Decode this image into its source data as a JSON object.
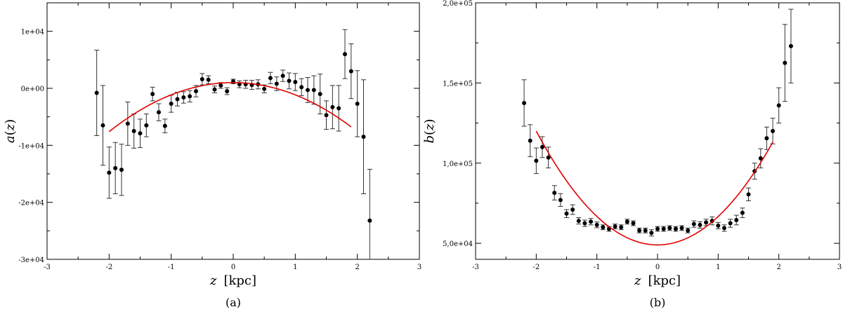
{
  "chart_data": [
    {
      "type": "scatter",
      "panel_label": "(a)",
      "xlabel_var": "z",
      "xlabel_unit": "[kpc]",
      "ylabel_var": "a",
      "ylabel_arg": "z",
      "xlim": [
        -3,
        3
      ],
      "ylim": [
        -30000,
        15000
      ],
      "x_ticks": [
        -3,
        -2,
        -1,
        0,
        1,
        2,
        3
      ],
      "x_tick_labels": [
        "-3",
        "-2",
        "-1",
        "0",
        "1",
        "2",
        "3"
      ],
      "y_ticks": [
        -30000,
        -20000,
        -10000,
        0,
        10000
      ],
      "y_tick_labels": [
        "-3e+04",
        "-2e+04",
        "-1e+04",
        "0e+00",
        "1e+04"
      ],
      "series": [
        {
          "kind": "points_with_error_bars",
          "color": "#000000",
          "points": [
            {
              "x": -2.2,
              "y": -800,
              "err": 7500
            },
            {
              "x": -2.1,
              "y": -6500,
              "err": 7000
            },
            {
              "x": -2.0,
              "y": -14800,
              "err": 4500
            },
            {
              "x": -1.9,
              "y": -14000,
              "err": 4500
            },
            {
              "x": -1.8,
              "y": -14300,
              "err": 4500
            },
            {
              "x": -1.7,
              "y": -6200,
              "err": 3800
            },
            {
              "x": -1.6,
              "y": -7500,
              "err": 3000
            },
            {
              "x": -1.5,
              "y": -7900,
              "err": 2500
            },
            {
              "x": -1.4,
              "y": -6500,
              "err": 2000
            },
            {
              "x": -1.3,
              "y": -1000,
              "err": 1200
            },
            {
              "x": -1.2,
              "y": -4200,
              "err": 1500
            },
            {
              "x": -1.1,
              "y": -6600,
              "err": 1200
            },
            {
              "x": -1.0,
              "y": -2700,
              "err": 1500
            },
            {
              "x": -0.9,
              "y": -1900,
              "err": 1200
            },
            {
              "x": -0.8,
              "y": -1600,
              "err": 1000
            },
            {
              "x": -0.7,
              "y": -1400,
              "err": 1000
            },
            {
              "x": -0.6,
              "y": -500,
              "err": 1000
            },
            {
              "x": -0.5,
              "y": 1600,
              "err": 1000
            },
            {
              "x": -0.4,
              "y": 1500,
              "err": 700
            },
            {
              "x": -0.3,
              "y": -200,
              "err": 600
            },
            {
              "x": -0.2,
              "y": 500,
              "err": 500
            },
            {
              "x": -0.1,
              "y": -500,
              "err": 600
            },
            {
              "x": 0.0,
              "y": 1200,
              "err": 400
            },
            {
              "x": 0.1,
              "y": 700,
              "err": 600
            },
            {
              "x": 0.2,
              "y": 700,
              "err": 700
            },
            {
              "x": 0.3,
              "y": 600,
              "err": 800
            },
            {
              "x": 0.4,
              "y": 700,
              "err": 800
            },
            {
              "x": 0.5,
              "y": -100,
              "err": 700
            },
            {
              "x": 0.6,
              "y": 1800,
              "err": 1000
            },
            {
              "x": 0.7,
              "y": 800,
              "err": 1200
            },
            {
              "x": 0.8,
              "y": 2200,
              "err": 1000
            },
            {
              "x": 0.9,
              "y": 1300,
              "err": 1400
            },
            {
              "x": 1.0,
              "y": 1100,
              "err": 1500
            },
            {
              "x": 1.1,
              "y": 200,
              "err": 1500
            },
            {
              "x": 1.2,
              "y": -300,
              "err": 2200
            },
            {
              "x": 1.3,
              "y": -300,
              "err": 2500
            },
            {
              "x": 1.4,
              "y": -1000,
              "err": 3500
            },
            {
              "x": 1.5,
              "y": -4700,
              "err": 2500
            },
            {
              "x": 1.6,
              "y": -3300,
              "err": 3800
            },
            {
              "x": 1.7,
              "y": -3500,
              "err": 4000
            },
            {
              "x": 1.8,
              "y": 6000,
              "err": 4300
            },
            {
              "x": 1.9,
              "y": 3000,
              "err": 4800
            },
            {
              "x": 2.0,
              "y": -2700,
              "err": 5800
            },
            {
              "x": 2.1,
              "y": -8500,
              "err": 10000
            },
            {
              "x": 2.2,
              "y": -23200,
              "err": 9000
            }
          ]
        },
        {
          "kind": "fit_curve",
          "color": "#e00000",
          "model": "quadratic",
          "x_range": [
            -2.0,
            1.9
          ],
          "coefficients": {
            "a0": 1000,
            "a1": 0,
            "a2": -2150
          }
        }
      ]
    },
    {
      "type": "scatter",
      "panel_label": "(b)",
      "xlabel_var": "z",
      "xlabel_unit": "[kpc]",
      "ylabel_var": "b",
      "ylabel_arg": "z",
      "xlim": [
        -3,
        3
      ],
      "ylim": [
        40000,
        200000
      ],
      "x_ticks": [
        -3,
        -2,
        -1,
        0,
        1,
        2,
        3
      ],
      "x_tick_labels": [
        "-3",
        "-2",
        "-1",
        "0",
        "1",
        "2",
        "3"
      ],
      "y_ticks": [
        50000,
        100000,
        150000,
        200000
      ],
      "y_tick_labels": [
        "5,0e+04",
        "1,0e+05",
        "1,5e+05",
        "2,0e+05"
      ],
      "series": [
        {
          "kind": "points_with_error_bars",
          "color": "#000000",
          "points": [
            {
              "x": -2.2,
              "y": 137500,
              "err": 14500
            },
            {
              "x": -2.1,
              "y": 114000,
              "err": 10000
            },
            {
              "x": -2.0,
              "y": 101500,
              "err": 8000
            },
            {
              "x": -1.9,
              "y": 110000,
              "err": 6500
            },
            {
              "x": -1.8,
              "y": 103500,
              "err": 6500
            },
            {
              "x": -1.7,
              "y": 81500,
              "err": 4500
            },
            {
              "x": -1.6,
              "y": 77000,
              "err": 4000
            },
            {
              "x": -1.5,
              "y": 68500,
              "err": 2500
            },
            {
              "x": -1.4,
              "y": 71000,
              "err": 3000
            },
            {
              "x": -1.3,
              "y": 64000,
              "err": 2000
            },
            {
              "x": -1.2,
              "y": 62500,
              "err": 2000
            },
            {
              "x": -1.1,
              "y": 63500,
              "err": 2000
            },
            {
              "x": -1.0,
              "y": 61500,
              "err": 1800
            },
            {
              "x": -0.9,
              "y": 60000,
              "err": 1500
            },
            {
              "x": -0.8,
              "y": 59000,
              "err": 1500
            },
            {
              "x": -0.7,
              "y": 60500,
              "err": 1500
            },
            {
              "x": -0.6,
              "y": 60000,
              "err": 1500
            },
            {
              "x": -0.5,
              "y": 63500,
              "err": 1500
            },
            {
              "x": -0.4,
              "y": 62500,
              "err": 1500
            },
            {
              "x": -0.3,
              "y": 58000,
              "err": 1500
            },
            {
              "x": -0.2,
              "y": 58000,
              "err": 1500
            },
            {
              "x": -0.1,
              "y": 56500,
              "err": 2000
            },
            {
              "x": 0.0,
              "y": 59000,
              "err": 1500
            },
            {
              "x": 0.1,
              "y": 59000,
              "err": 1500
            },
            {
              "x": 0.2,
              "y": 59500,
              "err": 1500
            },
            {
              "x": 0.3,
              "y": 59000,
              "err": 1500
            },
            {
              "x": 0.4,
              "y": 59500,
              "err": 1500
            },
            {
              "x": 0.5,
              "y": 58000,
              "err": 1500
            },
            {
              "x": 0.6,
              "y": 62000,
              "err": 2000
            },
            {
              "x": 0.7,
              "y": 61500,
              "err": 2000
            },
            {
              "x": 0.8,
              "y": 63000,
              "err": 2000
            },
            {
              "x": 0.9,
              "y": 64000,
              "err": 2500
            },
            {
              "x": 1.0,
              "y": 61000,
              "err": 2000
            },
            {
              "x": 1.1,
              "y": 59500,
              "err": 2000
            },
            {
              "x": 1.2,
              "y": 62500,
              "err": 2500
            },
            {
              "x": 1.3,
              "y": 64500,
              "err": 3000
            },
            {
              "x": 1.4,
              "y": 69000,
              "err": 3000
            },
            {
              "x": 1.5,
              "y": 80500,
              "err": 4000
            },
            {
              "x": 1.6,
              "y": 95000,
              "err": 5000
            },
            {
              "x": 1.7,
              "y": 103000,
              "err": 6000
            },
            {
              "x": 1.8,
              "y": 115500,
              "err": 7000
            },
            {
              "x": 1.9,
              "y": 120000,
              "err": 8000
            },
            {
              "x": 2.0,
              "y": 136000,
              "err": 11000
            },
            {
              "x": 2.1,
              "y": 162500,
              "err": 24000
            },
            {
              "x": 2.2,
              "y": 173000,
              "err": 23000
            }
          ]
        },
        {
          "kind": "fit_curve",
          "color": "#e00000",
          "model": "quadratic",
          "x_range": [
            -2.0,
            1.9
          ],
          "coefficients": {
            "a0": 49000,
            "a1": 0,
            "a2": 17750
          }
        }
      ]
    }
  ]
}
